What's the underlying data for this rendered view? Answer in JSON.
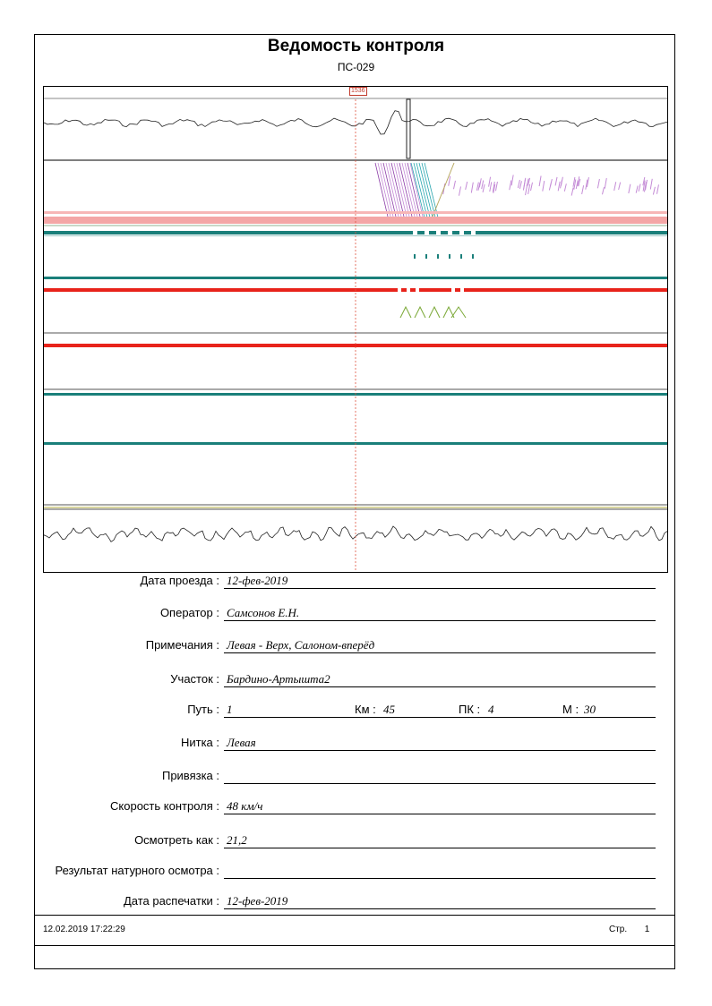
{
  "header": {
    "title": "Ведомость контроля",
    "doc_id": "ПС-029"
  },
  "scan": {
    "marker_label": "1536"
  },
  "fields": [
    {
      "label": "Дата проезда :",
      "value": "12-фев-2019"
    },
    {
      "label": "Оператор :",
      "value": "Самсонов Е.Н."
    },
    {
      "label": "Примечания :",
      "value": "Левая - Верх, Салоном-вперёд"
    },
    {
      "label": "Участок :",
      "value": "Бардино-Артышта2"
    },
    {
      "label": "Путь :",
      "value": "1",
      "km_label": "Км :",
      "km_value": "45",
      "pk_label": "ПК :",
      "pk_value": "4",
      "m_label": "М :",
      "m_value": "30"
    },
    {
      "label": "Нитка :",
      "value": "Левая"
    },
    {
      "label": "Привязка :",
      "value": ""
    },
    {
      "label": "Скорость контроля :",
      "value": "48 км/ч"
    },
    {
      "label": "Осмотреть как :",
      "value": "21,2"
    },
    {
      "label": "Результат натурного осмотра :",
      "value": ""
    },
    {
      "label": "Дата распечатки :",
      "value": "12-фев-2019"
    }
  ],
  "footer": {
    "printed_at": "12.02.2019 17:22:29",
    "page_label": "Стр.",
    "page_number": "1"
  },
  "colors": {
    "pink": "#f4a6a6",
    "teal": "#1a7f7a",
    "red": "#e8231b",
    "purple": "#c48bd6",
    "olive": "#d8d6a0"
  }
}
